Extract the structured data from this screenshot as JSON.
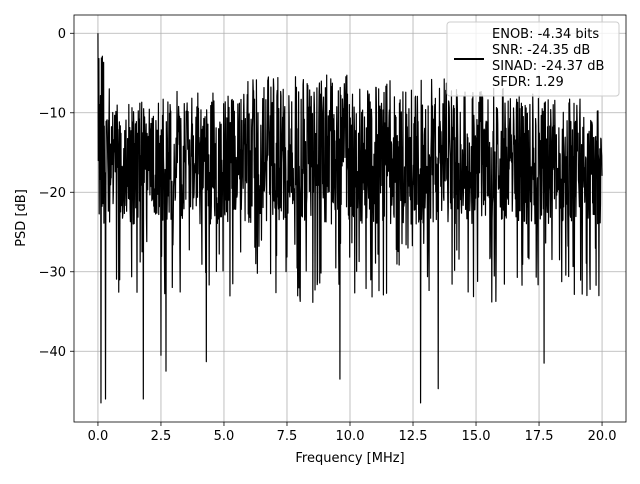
{
  "chart_data": {
    "type": "line",
    "title": "",
    "xlabel": "Frequency [MHz]",
    "ylabel": "PSD [dB]",
    "xlim": [
      -0.95,
      20.95
    ],
    "ylim": [
      -48.9,
      2.3
    ],
    "xticks": [
      0.0,
      2.5,
      5.0,
      7.5,
      10.0,
      12.5,
      15.0,
      17.5,
      20.0
    ],
    "xtick_labels": [
      "0.0",
      "2.5",
      "5.0",
      "7.5",
      "10.0",
      "12.5",
      "15.0",
      "17.5",
      "20.0"
    ],
    "yticks": [
      0,
      -10,
      -20,
      -30,
      -40
    ],
    "ytick_labels": [
      "0",
      "−10",
      "−20",
      "−30",
      "−40"
    ],
    "grid": true,
    "legend": {
      "placement": "upper-right",
      "entries": [
        "ENOB: -4.34 bits",
        "SNR: -24.35 dB",
        "SINAD: -24.37 dB",
        "SFDR: 1.29"
      ]
    },
    "series": [
      {
        "color": "#000000",
        "x_start": 0.0,
        "x_end": 20.0,
        "upper_envelope_db": [
          [
            0.0,
            0.0
          ],
          [
            0.5,
            -7
          ],
          [
            1.0,
            -9
          ],
          [
            1.5,
            -8
          ],
          [
            2.0,
            -9
          ],
          [
            2.5,
            -8
          ],
          [
            3.0,
            -7
          ],
          [
            3.5,
            -8
          ],
          [
            4.0,
            -7
          ],
          [
            4.5,
            -6
          ],
          [
            5.0,
            -7
          ],
          [
            5.5,
            -6
          ],
          [
            6.0,
            -5
          ],
          [
            6.5,
            -6
          ],
          [
            7.0,
            -5
          ],
          [
            7.5,
            -6
          ],
          [
            8.0,
            -5
          ],
          [
            8.5,
            -6
          ],
          [
            9.0,
            -5
          ],
          [
            9.5,
            -6
          ],
          [
            10.0,
            -5
          ],
          [
            10.5,
            -5
          ],
          [
            11.0,
            -6
          ],
          [
            11.5,
            -5
          ],
          [
            12.0,
            -6
          ],
          [
            12.5,
            -5
          ],
          [
            13.0,
            -6
          ],
          [
            13.5,
            -5
          ],
          [
            14.0,
            -6
          ],
          [
            14.5,
            -7
          ],
          [
            15.0,
            -6
          ],
          [
            15.5,
            -7
          ],
          [
            16.0,
            -6
          ],
          [
            16.5,
            -7
          ],
          [
            17.0,
            -8
          ],
          [
            17.5,
            -7
          ],
          [
            18.0,
            -8
          ],
          [
            18.5,
            -7
          ],
          [
            19.0,
            -8
          ],
          [
            19.5,
            -9
          ],
          [
            20.0,
            -10
          ]
        ],
        "typical_floor_db": -24,
        "notable_dips": [
          [
            0.12,
            -46.5
          ],
          [
            0.3,
            -46.0
          ],
          [
            1.8,
            -46.0
          ],
          [
            2.5,
            -40.5
          ],
          [
            2.7,
            -42.5
          ],
          [
            4.3,
            -41.3
          ],
          [
            9.6,
            -43.5
          ],
          [
            12.8,
            -46.5
          ],
          [
            13.5,
            -44.7
          ],
          [
            17.7,
            -41.5
          ]
        ]
      }
    ]
  }
}
